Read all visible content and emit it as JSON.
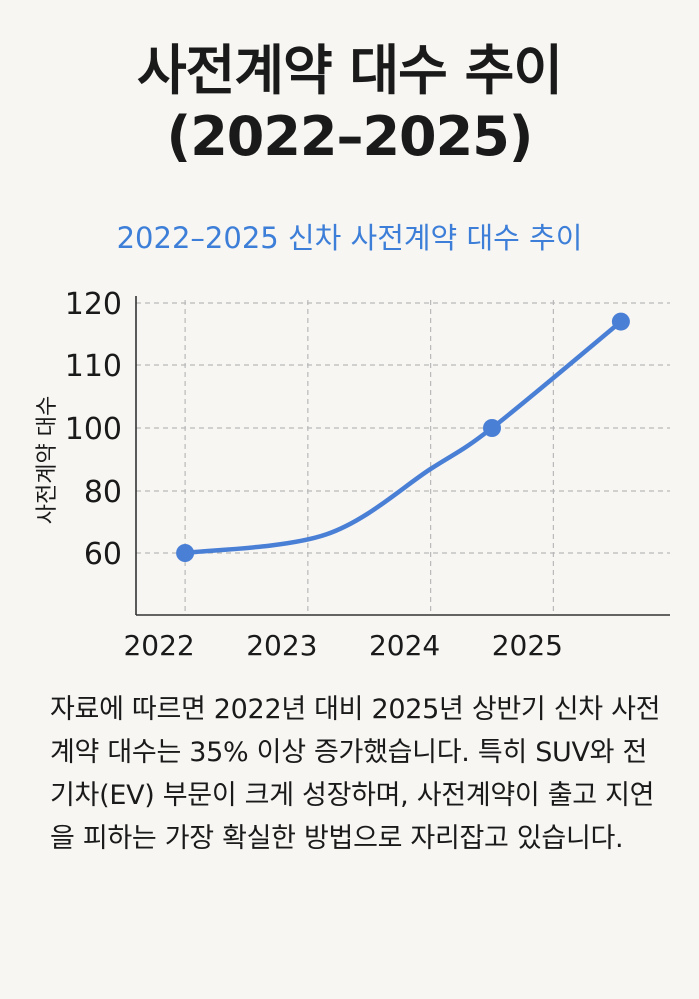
{
  "title": {
    "line1": "사전계약 대수 추이",
    "line2": "(2022–2025)"
  },
  "paragraph": "자료에 따르면 2022년 대비 2025년 상반기 신차 사전계약 대수는 35% 이상 증가했습니다. 특히 SUV와 전기차(EV) 부문이 크게 성장하며, 사전계약이 출고 지연을 피하는 가장 확실한 방법으로 자리잡고 있습니다.",
  "chart_data": {
    "type": "line",
    "title": "2022–2025 신차 사전계약 대수 추이",
    "xlabel": "",
    "ylabel": "사전계약 대수",
    "x_ticks": [
      2022,
      2023,
      2024,
      2025
    ],
    "x_tick_labels": [
      "2022",
      "2023",
      "2024",
      "2025"
    ],
    "xlim": [
      2021.6,
      2025.95
    ],
    "y_ticks": [
      60,
      80,
      100,
      110,
      120
    ],
    "y_tick_labels": [
      "60",
      "80",
      "100",
      "110",
      "120"
    ],
    "grid": true,
    "line_color": "#4a7fd6",
    "series": [
      {
        "x": [
          2022,
          2023.15,
          2024,
          2024.5,
          2025.55
        ],
        "y": [
          60,
          66,
          87,
          100,
          117
        ],
        "markers": [
          true,
          false,
          false,
          true,
          true
        ]
      }
    ]
  }
}
